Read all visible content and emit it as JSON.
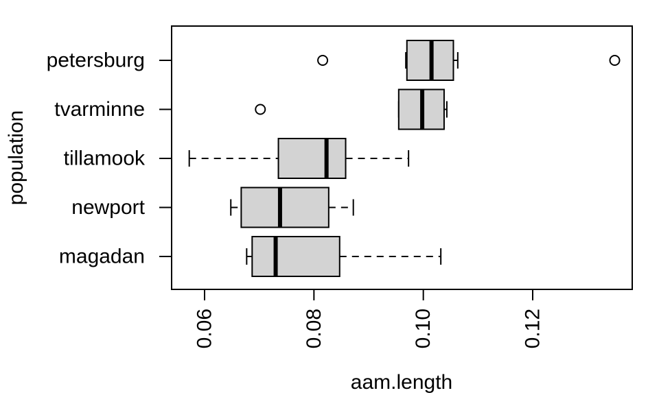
{
  "chart_data": {
    "type": "boxplot",
    "orientation": "horizontal",
    "xlabel": "aam.length",
    "ylabel": "population",
    "xlim": [
      0.054,
      0.138
    ],
    "x_ticks": [
      0.06,
      0.08,
      0.1,
      0.12
    ],
    "x_tick_labels": [
      "0.06",
      "0.08",
      "0.10",
      "0.12"
    ],
    "categories": [
      "magadan",
      "newport",
      "tillamook",
      "tvarminne",
      "petersburg"
    ],
    "boxes": [
      {
        "category": "magadan",
        "whisker_low": 0.0677,
        "q1": 0.0687,
        "median": 0.073,
        "q3": 0.0847,
        "whisker_high": 0.1032,
        "outliers": []
      },
      {
        "category": "newport",
        "whisker_low": 0.0648,
        "q1": 0.0667,
        "median": 0.0738,
        "q3": 0.0827,
        "whisker_high": 0.0872,
        "outliers": []
      },
      {
        "category": "tillamook",
        "whisker_low": 0.0572,
        "q1": 0.0735,
        "median": 0.0823,
        "q3": 0.0858,
        "whisker_high": 0.0973,
        "outliers": []
      },
      {
        "category": "tvarminne",
        "whisker_low": 0.0955,
        "q1": 0.0955,
        "median": 0.0998,
        "q3": 0.1038,
        "whisker_high": 0.1043,
        "outliers": [
          0.0702
        ]
      },
      {
        "category": "petersburg",
        "whisker_low": 0.0968,
        "q1": 0.097,
        "median": 0.1015,
        "q3": 0.1055,
        "whisker_high": 0.1063,
        "outliers": [
          0.0816,
          0.135
        ]
      }
    ],
    "box_fill": "#d3d3d3",
    "grid": false
  }
}
